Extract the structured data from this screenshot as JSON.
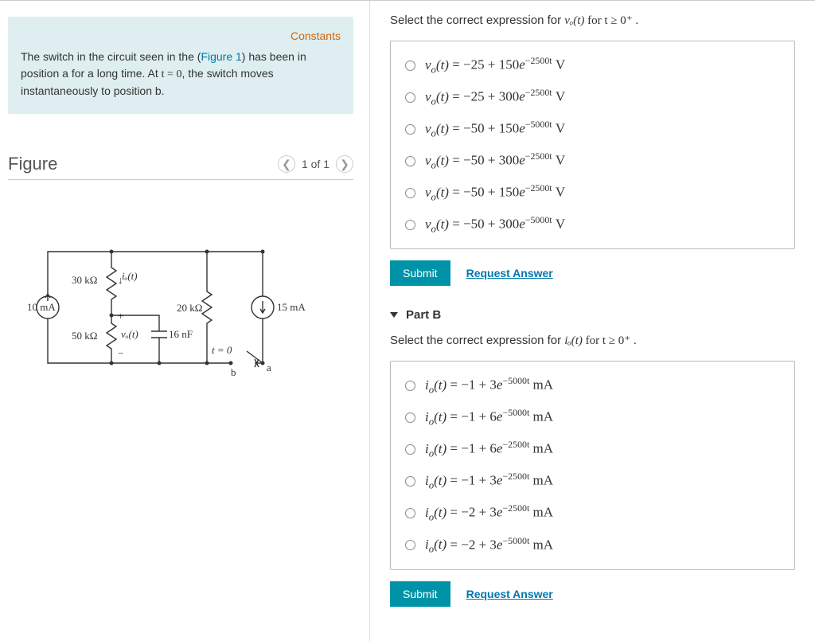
{
  "info": {
    "constants_link": "Constants",
    "text_1": "The switch in the circuit seen in the (",
    "fig_link": "Figure 1",
    "text_2": ") has been in position a for a long time. At ",
    "eq": "t = 0",
    "text_3": ", the switch moves instantaneously to position b."
  },
  "figure": {
    "title": "Figure",
    "pager": "1 of 1",
    "labels": {
      "src_left": "10 mA",
      "r30": "30 kΩ",
      "r50": "50 kΩ",
      "r20": "20 kΩ",
      "cap": "16 nF",
      "src_right": "15 mA",
      "io": "iₒ(t)",
      "vo": "vₒ(t)",
      "t0": "t = 0",
      "sw_a": "a",
      "sw_b": "b",
      "plus": "+",
      "minus": "−"
    }
  },
  "partA": {
    "prompt_pre": "Select the correct expression for ",
    "prompt_var": "vₒ(t)",
    "prompt_post": " for t ≥ 0⁺ .",
    "options": [
      {
        "c": "−25",
        "a": "150",
        "k": "−2500t"
      },
      {
        "c": "−25",
        "a": "300",
        "k": "−2500t"
      },
      {
        "c": "−50",
        "a": "150",
        "k": "−5000t"
      },
      {
        "c": "−50",
        "a": "300",
        "k": "−2500t"
      },
      {
        "c": "−50",
        "a": "150",
        "k": "−2500t"
      },
      {
        "c": "−50",
        "a": "300",
        "k": "−5000t"
      }
    ],
    "unit": "V",
    "submit": "Submit",
    "request": "Request Answer"
  },
  "partB": {
    "header": "Part B",
    "prompt_pre": "Select the correct expression for ",
    "prompt_var": "iₒ(t)",
    "prompt_post": " for t ≥ 0⁺ .",
    "options": [
      {
        "c": "−1",
        "a": "3",
        "k": "−5000t"
      },
      {
        "c": "−1",
        "a": "6",
        "k": "−5000t"
      },
      {
        "c": "−1",
        "a": "6",
        "k": "−2500t"
      },
      {
        "c": "−1",
        "a": "3",
        "k": "−2500t"
      },
      {
        "c": "−2",
        "a": "3",
        "k": "−2500t"
      },
      {
        "c": "−2",
        "a": "3",
        "k": "−5000t"
      }
    ],
    "unit": "mA",
    "submit": "Submit",
    "request": "Request Answer"
  },
  "style": {
    "accent": "#0093a8",
    "link": "#0077aa",
    "constants": "#d4660a",
    "info_bg": "#dfeef0",
    "border": "#bbbbbb"
  }
}
